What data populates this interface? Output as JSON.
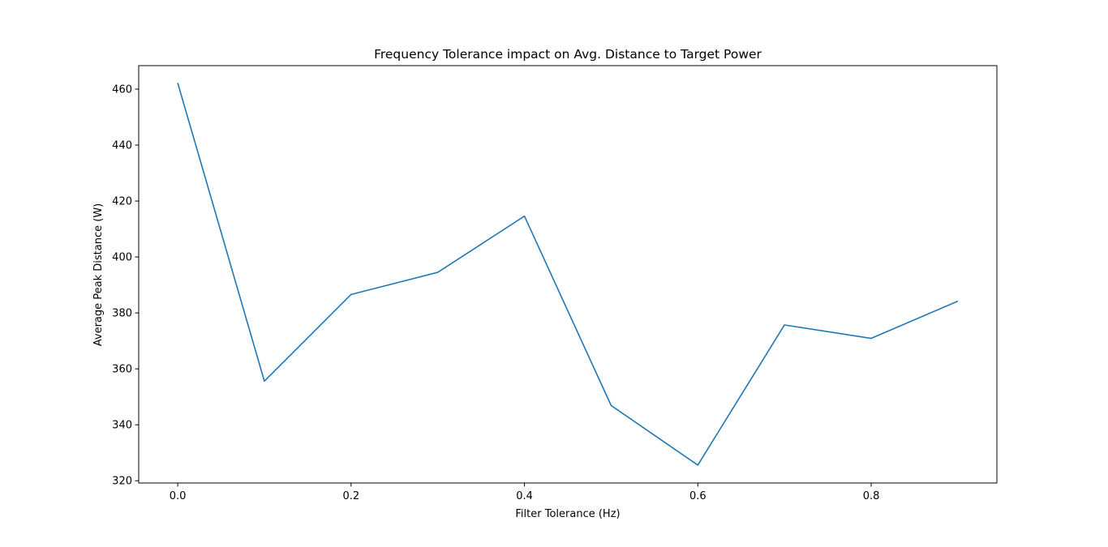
{
  "chart_data": {
    "type": "line",
    "title": "Frequency Tolerance impact on Avg. Distance to Target Power",
    "xlabel": "Filter Tolerance (Hz)",
    "ylabel": "Average Peak Distance (W)",
    "xlim": [
      -0.045,
      0.945
    ],
    "ylim": [
      319.2,
      468.4
    ],
    "x_ticks": [
      0.0,
      0.2,
      0.4,
      0.6,
      0.8
    ],
    "x_tick_labels": [
      "0.0",
      "0.2",
      "0.4",
      "0.6",
      "0.8"
    ],
    "y_ticks": [
      320,
      340,
      360,
      380,
      400,
      420,
      440,
      460
    ],
    "y_tick_labels": [
      "320",
      "340",
      "360",
      "380",
      "400",
      "420",
      "440",
      "460"
    ],
    "grid": false,
    "series": [
      {
        "color": "#1f77b4",
        "x": [
          0.0,
          0.1,
          0.2,
          0.3,
          0.4,
          0.5,
          0.6,
          0.7,
          0.8,
          0.9
        ],
        "y": [
          462.2,
          355.6,
          386.6,
          394.5,
          414.6,
          346.9,
          325.6,
          375.7,
          370.9,
          384.2
        ]
      }
    ]
  }
}
